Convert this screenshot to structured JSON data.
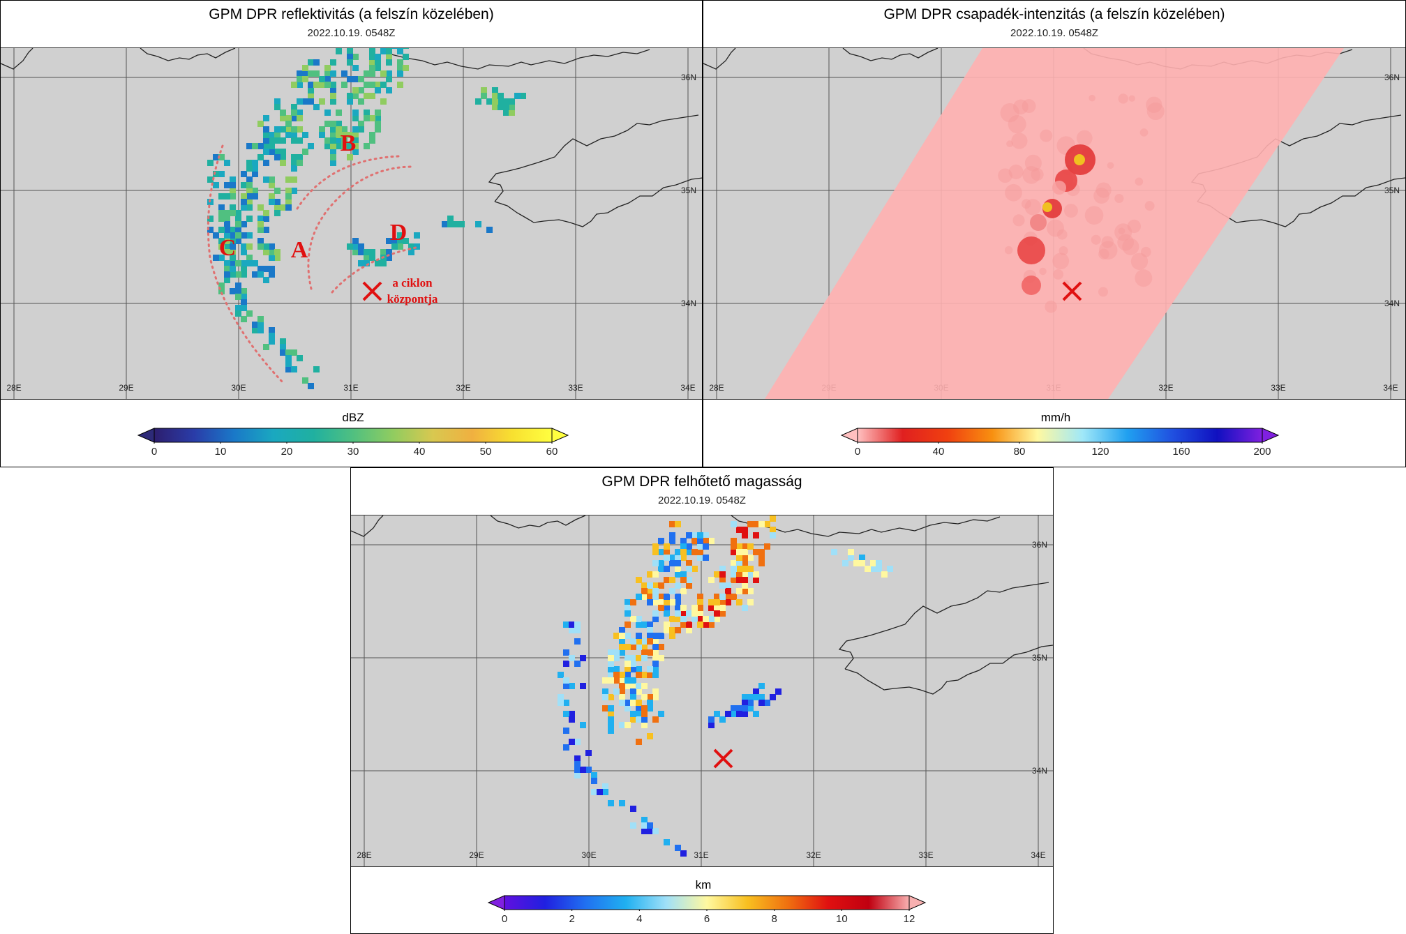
{
  "panels": [
    {
      "title": "GPM DPR reflektivitás (a felszín közelében)",
      "timestamp": "2022.10.19. 0548Z",
      "unit": "dBZ",
      "ticks": [
        "0",
        "10",
        "20",
        "30",
        "40",
        "50",
        "60"
      ],
      "colors": [
        "#2d1e6e",
        "#2a3ca8",
        "#1a78c8",
        "#1aa8c0",
        "#20b0a0",
        "#50c080",
        "#90cc60",
        "#d8c850",
        "#f0b040",
        "#f8e030",
        "#ffff40"
      ],
      "under_color": "#2d2a78",
      "over_color": "#ffff40"
    },
    {
      "title": "GPM DPR csapadék-intenzitás (a felszín közelében)",
      "timestamp": "2022.10.19. 0548Z",
      "unit": "mm/h",
      "ticks": [
        "0",
        "40",
        "80",
        "120",
        "160",
        "200"
      ],
      "colors": [
        "#ffc0c0",
        "#e02020",
        "#f04010",
        "#f89010",
        "#fff8a0",
        "#a0e8f8",
        "#20a0f0",
        "#2050e0",
        "#1010c0",
        "#8020e0"
      ],
      "under_color": "#ffc0c0",
      "over_color": "#8020e0"
    },
    {
      "title": "GPM DPR felhőtető magasság",
      "timestamp": "2022.10.19. 0548Z",
      "unit": "km",
      "ticks": [
        "0",
        "2",
        "4",
        "6",
        "8",
        "10",
        "12"
      ],
      "colors": [
        "#6010e0",
        "#2020e0",
        "#2070f0",
        "#20b0f0",
        "#a0e0f8",
        "#fff8a0",
        "#f8c020",
        "#f07010",
        "#e01010",
        "#c00010",
        "#f8b0b0"
      ],
      "under_color": "#8020e0",
      "over_color": "#f8b0b0"
    }
  ],
  "lon_labels": [
    "28E",
    "29E",
    "30E",
    "31E",
    "32E",
    "33E",
    "34E"
  ],
  "lat_labels": [
    "36N",
    "35N",
    "34N"
  ],
  "annotations": {
    "A": "A",
    "B": "B",
    "C": "C",
    "D": "D",
    "center_line1": "a ciklon",
    "center_line2": "központja"
  },
  "accent": {
    "marker": "#e01010",
    "land": "#d0d0d0",
    "swath": "#ffb0b0"
  }
}
